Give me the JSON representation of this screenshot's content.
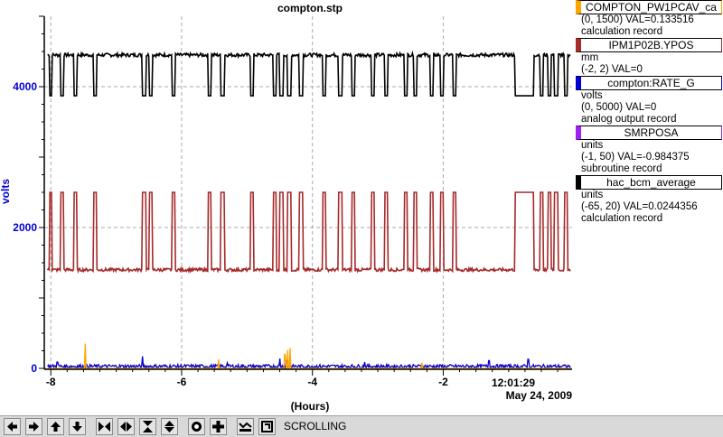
{
  "chart_data": {
    "type": "line",
    "title": "compton.stp",
    "xlabel": "(Hours)",
    "ylabel": "volts",
    "xlim": [
      -8.1,
      -0.03
    ],
    "ylim": [
      0,
      5000
    ],
    "x_ticks": [
      -8,
      -6,
      -4,
      -2
    ],
    "x_tick_labels": [
      "-8",
      "-6",
      "-4",
      "-2"
    ],
    "y_ticks": [
      0,
      2000,
      4000
    ],
    "y_tick_labels": [
      "0",
      "2000",
      "4000"
    ],
    "grid": true,
    "timestamp_time": "12:01:29",
    "timestamp_date": "May 24, 2009",
    "series": [
      {
        "color": "#000000",
        "baseline": 4450,
        "low": 3870,
        "noise": 25,
        "dips": [
          [
            -8.02,
            -7.98
          ],
          [
            -7.85,
            -7.8
          ],
          [
            -7.65,
            -7.6
          ],
          [
            -7.35,
            -7.3
          ],
          [
            -6.6,
            -6.55
          ],
          [
            -6.5,
            -6.45
          ],
          [
            -6.15,
            -6.1
          ],
          [
            -5.6,
            -5.55
          ],
          [
            -5.4,
            -5.35
          ],
          [
            -4.95,
            -4.9
          ],
          [
            -4.6,
            -4.55
          ],
          [
            -4.5,
            -4.45
          ],
          [
            -4.38,
            -4.32
          ],
          [
            -4.2,
            -4.15
          ],
          [
            -3.85,
            -3.8
          ],
          [
            -3.6,
            -3.55
          ],
          [
            -3.4,
            -3.35
          ],
          [
            -3.1,
            -3.05
          ],
          [
            -2.9,
            -2.85
          ],
          [
            -2.6,
            -2.55
          ],
          [
            -2.45,
            -2.4
          ],
          [
            -2.2,
            -2.15
          ],
          [
            -2.05,
            -2.0
          ],
          [
            -1.85,
            -1.8
          ],
          [
            -0.9,
            -0.62
          ],
          [
            -0.52,
            -0.47
          ],
          [
            -0.4,
            -0.35
          ],
          [
            -0.3,
            -0.25
          ],
          [
            -0.15,
            -0.1
          ]
        ]
      },
      {
        "color": "#a52a2a",
        "baseline": 1400,
        "high": 2500,
        "noise": 22,
        "dips": [
          [
            -8.02,
            -7.98
          ],
          [
            -7.85,
            -7.8
          ],
          [
            -7.65,
            -7.6
          ],
          [
            -7.35,
            -7.3
          ],
          [
            -6.6,
            -6.55
          ],
          [
            -6.5,
            -6.45
          ],
          [
            -6.15,
            -6.1
          ],
          [
            -5.6,
            -5.55
          ],
          [
            -5.4,
            -5.35
          ],
          [
            -4.95,
            -4.9
          ],
          [
            -4.6,
            -4.55
          ],
          [
            -4.5,
            -4.45
          ],
          [
            -4.38,
            -4.32
          ],
          [
            -4.2,
            -4.15
          ],
          [
            -3.85,
            -3.8
          ],
          [
            -3.6,
            -3.55
          ],
          [
            -3.4,
            -3.35
          ],
          [
            -3.1,
            -3.05
          ],
          [
            -2.9,
            -2.85
          ],
          [
            -2.6,
            -2.55
          ],
          [
            -2.45,
            -2.4
          ],
          [
            -2.2,
            -2.15
          ],
          [
            -2.05,
            -2.0
          ],
          [
            -1.85,
            -1.8
          ],
          [
            -0.9,
            -0.62
          ],
          [
            -0.52,
            -0.47
          ],
          [
            -0.4,
            -0.35
          ],
          [
            -0.3,
            -0.25
          ],
          [
            -0.15,
            -0.1
          ]
        ]
      },
      {
        "color": "#0000d0",
        "baseline": 30,
        "noise": 25,
        "spikes": [
          [
            -7.9,
            90
          ],
          [
            -6.6,
            170
          ],
          [
            -5.3,
            80
          ],
          [
            -4.5,
            140
          ],
          [
            -4.4,
            120
          ],
          [
            -3.2,
            90
          ],
          [
            -1.3,
            110
          ],
          [
            -0.7,
            130
          ]
        ]
      },
      {
        "color": "#ffa500",
        "baseline": 0,
        "noise": 0,
        "spikes": [
          [
            -7.47,
            350
          ],
          [
            -5.43,
            130
          ],
          [
            -4.42,
            200
          ],
          [
            -4.38,
            260
          ],
          [
            -4.34,
            290
          ],
          [
            -2.33,
            80
          ]
        ]
      }
    ]
  },
  "legend": [
    {
      "name": "COMPTON_PW1PCAV_ca",
      "color": "#ffa500",
      "lines": [
        "(0, 1500) VAL=0.133516",
        "calculation record"
      ]
    },
    {
      "name": "IPM1P02B.YPOS",
      "color": "#a52a2a",
      "lines": [
        "mm",
        "(-2, 2) VAL=0"
      ]
    },
    {
      "name": "compton:RATE_G",
      "color": "#0000d0",
      "lines": [
        "volts",
        "(0, 5000) VAL=0",
        "analog output record"
      ]
    },
    {
      "name": "SMRPOSA",
      "color": "#a020f0",
      "lines": [
        "units",
        "(-1, 50) VAL=-0.984375",
        "subroutine record"
      ]
    },
    {
      "name": "hac_bcm_average",
      "color": "#000000",
      "lines": [
        "units",
        "(-65, 20) VAL=0.0244356",
        "calculation record"
      ]
    }
  ],
  "toolbar": {
    "status": "SCROLLING",
    "buttons": [
      "left-arrow-icon",
      "right-arrow-icon",
      "up-arrow-icon",
      "down-arrow-icon",
      "compress-horizontal-icon",
      "expand-horizontal-icon",
      "compress-vertical-icon",
      "expand-vertical-icon",
      "circle-icon",
      "plus-icon",
      "trend-icon",
      "crop-icon"
    ]
  },
  "colors": {
    "grid": "#aaaaaa",
    "ytick": "#0000d0",
    "axis": "#000000"
  }
}
